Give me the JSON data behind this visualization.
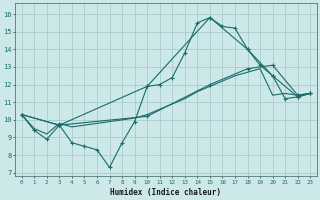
{
  "xlabel": "Humidex (Indice chaleur)",
  "background_color": "#cce8e8",
  "grid_color": "#aacccc",
  "line_color": "#1a6b6b",
  "xlim": [
    -0.5,
    23.5
  ],
  "ylim": [
    6.8,
    16.6
  ],
  "xticks": [
    0,
    1,
    2,
    3,
    4,
    5,
    6,
    7,
    8,
    9,
    10,
    11,
    12,
    13,
    14,
    15,
    16,
    17,
    18,
    19,
    20,
    21,
    22,
    23
  ],
  "yticks": [
    7,
    8,
    9,
    10,
    11,
    12,
    13,
    14,
    15,
    16
  ],
  "series": [
    {
      "x": [
        0,
        1,
        2,
        3,
        4,
        5,
        6,
        7,
        8,
        9,
        10,
        11,
        12,
        13,
        14,
        15,
        16,
        17,
        18,
        19,
        20,
        21,
        22,
        23
      ],
      "y": [
        10.3,
        9.4,
        8.9,
        9.7,
        8.7,
        8.5,
        8.3,
        7.3,
        8.7,
        9.9,
        11.9,
        12.0,
        12.4,
        13.8,
        15.5,
        15.8,
        15.3,
        15.2,
        14.0,
        13.1,
        12.5,
        11.2,
        11.3,
        11.5
      ],
      "marker": true
    },
    {
      "x": [
        0,
        3,
        10,
        15,
        18,
        20,
        22,
        23
      ],
      "y": [
        10.3,
        9.7,
        11.9,
        15.8,
        14.0,
        12.5,
        11.3,
        11.5
      ],
      "marker": true
    },
    {
      "x": [
        0,
        3,
        10,
        15,
        18,
        20,
        22,
        23
      ],
      "y": [
        10.3,
        9.7,
        10.2,
        12.0,
        12.9,
        13.1,
        11.4,
        11.5
      ],
      "marker": true
    },
    {
      "x": [
        0,
        1,
        2,
        3,
        4,
        5,
        6,
        7,
        8,
        9,
        10,
        11,
        12,
        13,
        14,
        15,
        16,
        17,
        18,
        19,
        20,
        21,
        22,
        23
      ],
      "y": [
        10.3,
        9.5,
        9.2,
        9.8,
        9.6,
        9.7,
        9.8,
        9.9,
        10.0,
        10.1,
        10.3,
        10.6,
        10.9,
        11.2,
        11.6,
        11.9,
        12.2,
        12.5,
        12.7,
        12.9,
        11.4,
        11.5,
        11.4,
        11.5
      ],
      "marker": false
    }
  ]
}
